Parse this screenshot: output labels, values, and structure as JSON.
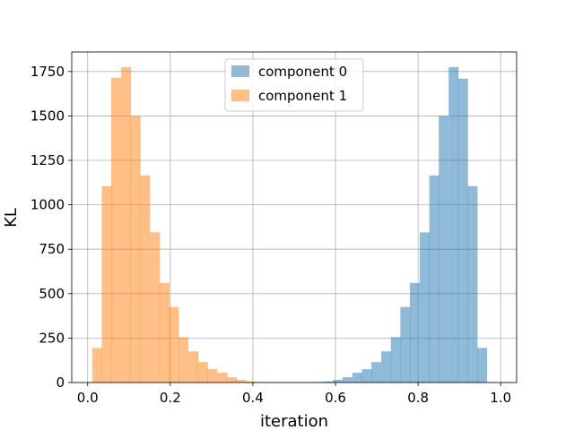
{
  "chart_data": {
    "type": "bar",
    "xlabel": "iteration",
    "ylabel": "KL",
    "xlim": [
      -0.0385,
      1.0385
    ],
    "ylim": [
      0,
      1860
    ],
    "grid": true,
    "legend_position": "top-center",
    "x_ticks": [
      0.0,
      0.2,
      0.4,
      0.6,
      0.8,
      1.0
    ],
    "x_tick_labels": [
      "0.0",
      "0.2",
      "0.4",
      "0.6",
      "0.8",
      "1.0"
    ],
    "y_ticks": [
      0,
      250,
      500,
      750,
      1000,
      1250,
      1500,
      1750
    ],
    "y_tick_labels": [
      "0",
      "250",
      "500",
      "750",
      "1000",
      "1250",
      "1500",
      "1750"
    ],
    "bin_width": 0.0233,
    "series": [
      {
        "name": "component 0",
        "color": "#1f77b4",
        "opacity": 0.5,
        "bin_starts": [
          0.524,
          0.547,
          0.571,
          0.594,
          0.617,
          0.641,
          0.664,
          0.687,
          0.711,
          0.734,
          0.757,
          0.78,
          0.804,
          0.827,
          0.85,
          0.874,
          0.897,
          0.92,
          0.943,
          0.967
        ],
        "values": [
          2,
          3,
          6,
          15,
          30,
          55,
          75,
          115,
          175,
          255,
          425,
          560,
          845,
          1165,
          1500,
          1775,
          1710,
          1105,
          195,
          0
        ]
      },
      {
        "name": "component 1",
        "color": "#ff7f0e",
        "opacity": 0.5,
        "bin_starts": [
          0.011,
          0.034,
          0.057,
          0.081,
          0.104,
          0.127,
          0.151,
          0.174,
          0.197,
          0.22,
          0.244,
          0.267,
          0.29,
          0.314,
          0.337,
          0.36,
          0.383,
          0.407,
          0.43,
          0.453
        ],
        "values": [
          195,
          1105,
          1715,
          1775,
          1500,
          1165,
          845,
          560,
          425,
          255,
          175,
          115,
          75,
          55,
          30,
          15,
          6,
          3,
          2,
          1
        ]
      }
    ]
  }
}
